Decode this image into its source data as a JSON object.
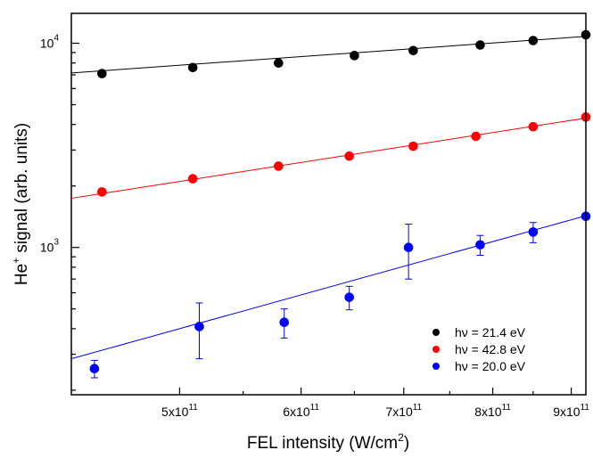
{
  "chart_data": {
    "type": "scatter",
    "xlabel": {
      "main": "FEL intensity (W/cm",
      "sup": "2",
      "end": ")"
    },
    "ylabel": {
      "main": "He",
      "sup": "+",
      "end": " signal (arb. units)"
    },
    "x_scale": "log",
    "y_scale": "log",
    "xlim": [
      425000000000.0,
      920000000000.0
    ],
    "ylim": [
      190,
      14000
    ],
    "x_ticks": [
      {
        "value": 500000000000.0,
        "mant": "5x10",
        "exp": "11"
      },
      {
        "value": 600000000000.0,
        "mant": "6x10",
        "exp": "11"
      },
      {
        "value": 700000000000.0,
        "mant": "7x10",
        "exp": "11"
      },
      {
        "value": 800000000000.0,
        "mant": "8x10",
        "exp": "11"
      },
      {
        "value": 900000000000.0,
        "mant": "9x10",
        "exp": "11"
      }
    ],
    "y_ticks": [
      {
        "value": 1000,
        "mant": "10",
        "exp": "3"
      },
      {
        "value": 10000,
        "mant": "10",
        "exp": "4"
      }
    ],
    "legend_position": "bottom-right",
    "series": [
      {
        "name": "hν = 21.4 eV",
        "color": "#000000",
        "x": [
          445000000000.0,
          510000000000.0,
          580000000000.0,
          650000000000.0,
          710000000000.0,
          785000000000.0,
          850000000000.0,
          920000000000.0
        ],
        "y": [
          7100,
          7600,
          8000,
          8700,
          9200,
          9800,
          10300,
          11000
        ],
        "fit": {
          "x": [
            425000000000.0,
            920000000000.0
          ],
          "y": [
            7150,
            10800
          ]
        }
      },
      {
        "name": "hν = 42.8 eV",
        "color": "#ff0000",
        "x": [
          445000000000.0,
          510000000000.0,
          580000000000.0,
          645000000000.0,
          710000000000.0,
          780000000000.0,
          850000000000.0,
          920000000000.0
        ],
        "y": [
          1870,
          2170,
          2500,
          2800,
          3130,
          3500,
          3900,
          4350
        ],
        "fit": {
          "x": [
            425000000000.0,
            920000000000.0
          ],
          "y": [
            1740,
            4300
          ]
        }
      },
      {
        "name": "hν = 20.0 eV",
        "color": "#0000ff",
        "x": [
          440000000000.0,
          515000000000.0,
          585000000000.0,
          645000000000.0,
          705000000000.0,
          785000000000.0,
          850000000000.0,
          920000000000.0
        ],
        "y": [
          255,
          410,
          430,
          570,
          1000,
          1030,
          1190,
          1420
        ],
        "y_err": [
          25,
          125,
          70,
          75,
          300,
          115,
          135,
          null
        ],
        "fit": {
          "x": [
            425000000000.0,
            920000000000.0
          ],
          "y": [
            285,
            1430
          ]
        }
      }
    ]
  }
}
